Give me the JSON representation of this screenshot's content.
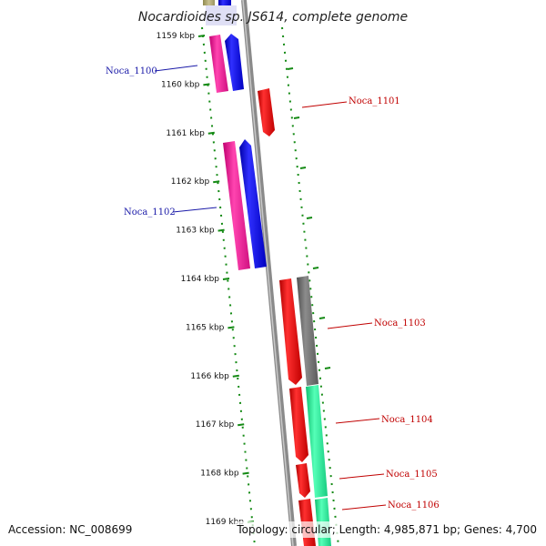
{
  "title": "Nocardioides sp. JS614, complete genome",
  "accession": "Accession: NC_008699",
  "topology": "Topology: circular; Length: 4,985,871 bp; Genes: 4,700",
  "kbp_labels": [
    "1159 kbp",
    "1160 kbp",
    "1161 kbp",
    "1162 kbp",
    "1163 kbp",
    "1164 kbp",
    "1165 kbp",
    "1166 kbp",
    "1167 kbp",
    "1168 kbp",
    "1169 kbp"
  ],
  "genes": [
    {
      "name": "Noca_1100",
      "strand": "minus"
    },
    {
      "name": "Noca_1101",
      "strand": "plus"
    },
    {
      "name": "Noca_1102",
      "strand": "minus"
    },
    {
      "name": "Noca_1103",
      "strand": "plus"
    },
    {
      "name": "Noca_1104",
      "strand": "plus"
    },
    {
      "name": "Noca_1105",
      "strand": "plus"
    },
    {
      "name": "Noca_1106",
      "strand": "plus"
    }
  ],
  "colors": {
    "backbone": "#8a8a8a",
    "plus_gene": "#ee0000",
    "minus_gene": "#1111ee",
    "magenta_feature": "#ee1a99",
    "teal_feature": "#22ee99",
    "gray_feature": "#6e6e6e",
    "tick_green": "#148a14",
    "label_blue": "#1a1aa8",
    "label_red": "#c00000"
  }
}
